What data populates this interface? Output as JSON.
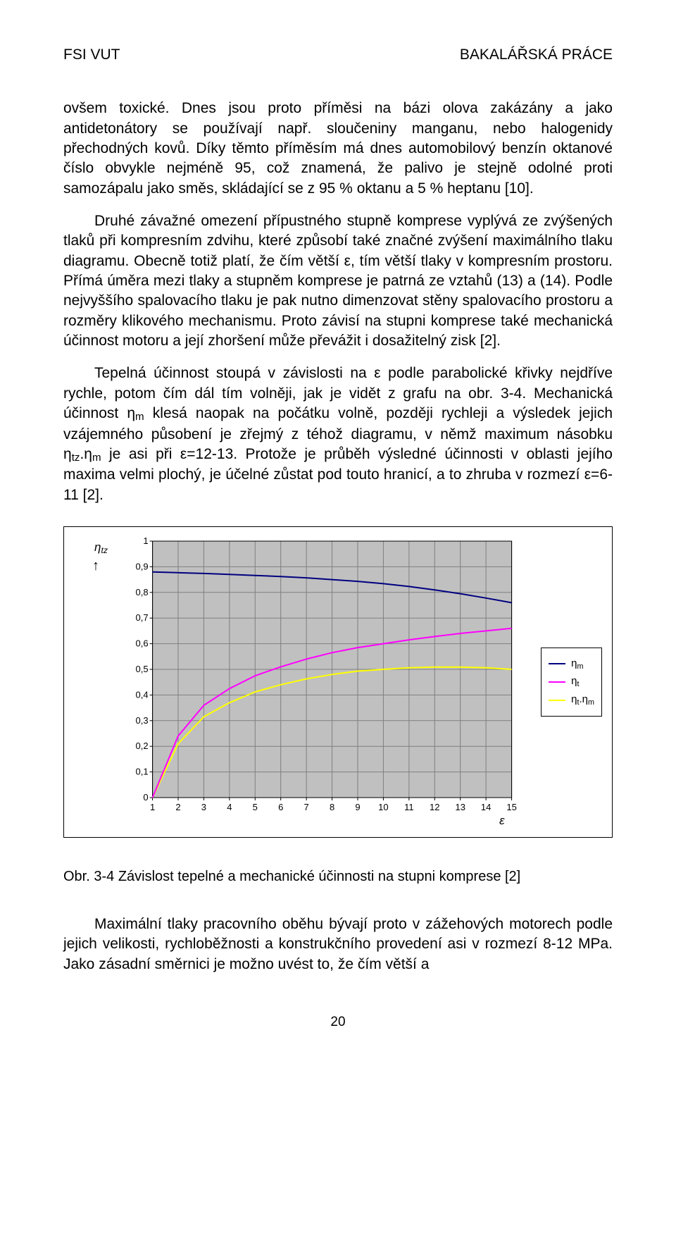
{
  "header": {
    "left": "FSI VUT",
    "right": "BAKALÁŘSKÁ PRÁCE"
  },
  "paragraphs": {
    "p1": "ovšem toxické. Dnes jsou proto příměsi na bázi olova zakázány a jako antidetonátory se používají např. sloučeniny manganu, nebo halogenidy přechodných kovů. Díky těmto příměsím má dnes automobilový benzín oktanové číslo obvykle nejméně 95, což znamená, že palivo je stejně odolné proti samozápalu jako směs, skládající se z 95 % oktanu a 5 % heptanu [10].",
    "p2_before_sub": "Druhé závažné omezení přípustného stupně komprese vyplývá ze zvýšených tlaků při kompresním zdvihu, které způsobí také značné zvýšení maximálního tlaku diagramu. Obecně totiž platí, že čím větší ε, tím větší tlaky v kompresním prostoru. Přímá úměra mezi tlaky a stupněm komprese je patrná ze vztahů (13) a (14). Podle nejvyššího spalovacího tlaku je pak nutno dimenzovat stěny spalovacího prostoru a rozměry klikového mechanismu. Proto závisí na stupni komprese také mechanická účinnost motoru a její zhoršení může převážit i dosažitelný zisk [2].",
    "p3_a": "Tepelná účinnost stoupá v závislosti na ε podle parabolické křivky nejdříve rychle, potom čím dál tím volněji, jak je vidět z grafu na obr. 3-4. Mechanická účinnost η",
    "p3_a_sub": "m",
    "p3_b": " klesá naopak na počátku volně, později rychleji a výsledek jejich vzájemného působení je zřejmý z téhož diagramu, v němž maximum násobku η",
    "p3_b_sub": "tz",
    "p3_c": ".η",
    "p3_c_sub": "m",
    "p3_d": " je asi při ε=12-13. Protože je průběh výsledné účinnosti v oblasti jejího maxima velmi plochý, je účelné zůstat pod touto hranicí, a to zhruba v rozmezí ε=6-11 [2].",
    "p4": "Maximální tlaky pracovního oběhu bývají proto v zážehových motorech podle jejich velikosti, rychloběžnosti a konstrukčního provedení asi v rozmezí 8-12 MPa. Jako zásadní směrnici je možno uvést to, že čím větší a"
  },
  "figure": {
    "caption": "Obr. 3-4 Závislost tepelné a mechanické účinnosti na stupni komprese [2]",
    "background_color": "#c0c0c0",
    "plot_bg": "#c0c0c0",
    "grid_color": "#7f7f7f",
    "axis_color": "#000000",
    "tick_font_size": 13,
    "ylabel": "η",
    "ylabel_sub": "tz",
    "xlabel": "ε",
    "x_range": [
      1,
      15
    ],
    "y_range": [
      0,
      1
    ],
    "x_ticks": [
      1,
      2,
      3,
      4,
      5,
      6,
      7,
      8,
      9,
      10,
      11,
      12,
      13,
      14,
      15
    ],
    "y_ticks": [
      0,
      0.1,
      0.2,
      0.3,
      0.4,
      0.5,
      0.6,
      0.7,
      0.8,
      0.9,
      1
    ],
    "y_tick_labels": [
      "0",
      "0,1",
      "0,2",
      "0,3",
      "0,4",
      "0,5",
      "0,6",
      "0,7",
      "0,8",
      "0,9",
      "1"
    ],
    "series": {
      "eta_m": {
        "label": "η",
        "label_sub": "m",
        "color": "#000080",
        "width": 2,
        "x": [
          1,
          2,
          3,
          4,
          5,
          6,
          7,
          8,
          9,
          10,
          11,
          12,
          13,
          14,
          15
        ],
        "y": [
          0.88,
          0.877,
          0.874,
          0.87,
          0.866,
          0.862,
          0.857,
          0.85,
          0.843,
          0.834,
          0.823,
          0.81,
          0.795,
          0.778,
          0.76
        ]
      },
      "eta_t": {
        "label": "η",
        "label_sub": "t",
        "color": "#ff00ff",
        "width": 2,
        "x": [
          1,
          2,
          3,
          4,
          5,
          6,
          7,
          8,
          9,
          10,
          11,
          12,
          13,
          14,
          15
        ],
        "y": [
          0,
          0.24,
          0.36,
          0.425,
          0.475,
          0.51,
          0.54,
          0.565,
          0.585,
          0.6,
          0.615,
          0.628,
          0.64,
          0.65,
          0.66
        ]
      },
      "eta_prod": {
        "label": "η",
        "label_sub": "t",
        "label_sep": ".η",
        "label_sub2": "m",
        "color": "#ffff00",
        "width": 2,
        "x": [
          1,
          2,
          3,
          4,
          5,
          6,
          7,
          8,
          9,
          10,
          11,
          12,
          13,
          14,
          15
        ],
        "y": [
          0,
          0.21,
          0.315,
          0.37,
          0.412,
          0.44,
          0.463,
          0.48,
          0.493,
          0.5,
          0.506,
          0.509,
          0.509,
          0.506,
          0.5
        ]
      }
    }
  },
  "page_number": "20"
}
